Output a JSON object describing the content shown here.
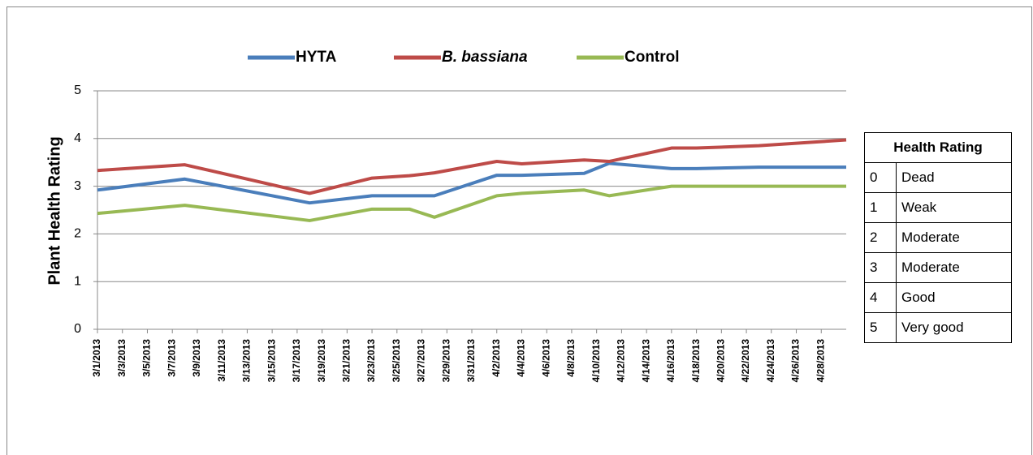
{
  "chart_data": {
    "type": "line",
    "y_label": "Plant Health Rating",
    "x": [
      "3/1/2013",
      "3/8/2013",
      "3/18/2013",
      "3/23/2013",
      "3/26/2013",
      "3/28/2013",
      "4/2/2013",
      "4/4/2013",
      "4/9/2013",
      "4/11/2013",
      "4/16/2013",
      "4/18/2013",
      "4/23/2013",
      "4/30/2013"
    ],
    "series": [
      {
        "name": "HYTA",
        "color": "#4a7ebb",
        "values": [
          2.92,
          3.15,
          2.65,
          2.8,
          2.8,
          2.8,
          3.23,
          3.23,
          3.27,
          3.48,
          3.37,
          3.37,
          3.4,
          3.4
        ]
      },
      {
        "name": "B. bassiana",
        "color": "#be4b48",
        "values": [
          3.33,
          3.45,
          2.85,
          3.17,
          3.22,
          3.28,
          3.52,
          3.47,
          3.55,
          3.52,
          3.8,
          3.8,
          3.85,
          3.97
        ]
      },
      {
        "name": "Control",
        "color": "#98b954",
        "values": [
          2.43,
          2.6,
          2.28,
          2.52,
          2.52,
          2.35,
          2.8,
          2.85,
          2.92,
          2.8,
          3.0,
          3.0,
          3.0,
          3.0
        ]
      }
    ],
    "xlim": [
      "3/1/2013",
      "4/30/2013"
    ],
    "xticks": [
      "3/1/2013",
      "3/3/2013",
      "3/5/2013",
      "3/7/2013",
      "3/9/2013",
      "3/11/2013",
      "3/13/2013",
      "3/15/2013",
      "3/17/2013",
      "3/19/2013",
      "3/21/2013",
      "3/23/2013",
      "3/25/2013",
      "3/27/2013",
      "3/29/2013",
      "3/31/2013",
      "4/2/2013",
      "4/4/2013",
      "4/6/2013",
      "4/8/2013",
      "4/10/2013",
      "4/12/2013",
      "4/14/2013",
      "4/16/2013",
      "4/18/2013",
      "4/20/2013",
      "4/22/2013",
      "4/24/2013",
      "4/26/2013",
      "4/28/2013"
    ],
    "ylim": [
      0,
      5
    ],
    "yticks": [
      0,
      1,
      2,
      3,
      4,
      5
    ],
    "grid": true
  },
  "table": {
    "title": "Health Rating",
    "rows": [
      [
        0,
        "Dead"
      ],
      [
        1,
        "Weak"
      ],
      [
        2,
        "Moderate"
      ],
      [
        3,
        "Moderate"
      ],
      [
        4,
        "Good"
      ],
      [
        5,
        "Very good"
      ]
    ]
  }
}
